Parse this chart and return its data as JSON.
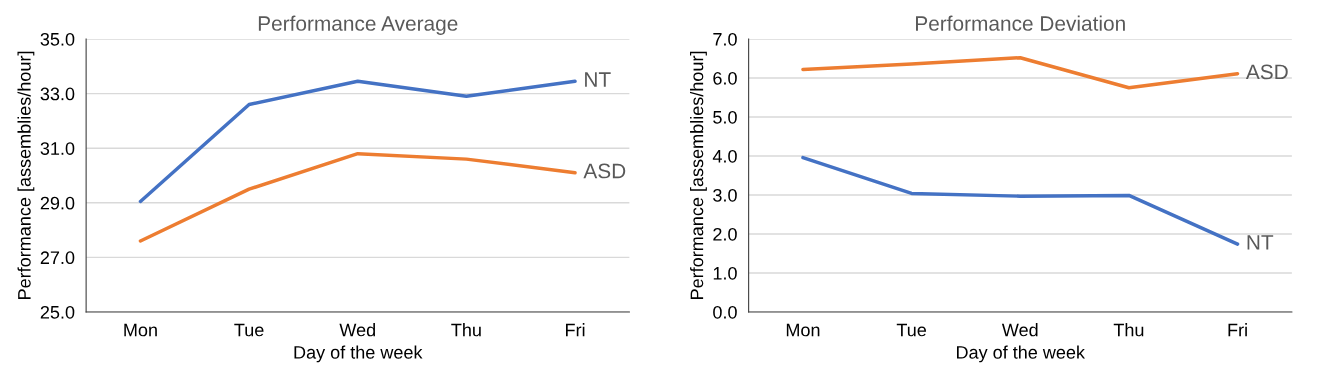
{
  "chart_data": [
    {
      "type": "line",
      "title": "Performance Average",
      "xlabel": "Day of the week",
      "ylabel": "Performance [assemblies/hour]",
      "categories": [
        "Mon",
        "Tue",
        "Wed",
        "Thu",
        "Fri"
      ],
      "series": [
        {
          "name": "NT",
          "color": "#4472c4",
          "values": [
            29.05,
            32.6,
            33.45,
            32.9,
            33.45
          ]
        },
        {
          "name": "ASD",
          "color": "#ed7d31",
          "values": [
            27.6,
            29.5,
            30.8,
            30.6,
            30.1
          ]
        }
      ],
      "ylim": [
        25,
        35
      ],
      "yticks": [
        {
          "value": 25,
          "label": "25.0"
        },
        {
          "value": 27,
          "label": "27.0"
        },
        {
          "value": 29,
          "label": "29.0"
        },
        {
          "value": 31,
          "label": "31.0"
        },
        {
          "value": 33,
          "label": "33.0"
        },
        {
          "value": 35,
          "label": "35.0"
        }
      ],
      "grid": "y",
      "legend": false,
      "marker": "none",
      "line_style": "solid"
    },
    {
      "type": "line",
      "title": "Performance Deviation",
      "xlabel": "Day of the week",
      "ylabel": "Performance [assemblies/hour]",
      "categories": [
        "Mon",
        "Tue",
        "Wed",
        "Thu",
        "Fri"
      ],
      "series": [
        {
          "name": "ASD",
          "color": "#ed7d31",
          "values": [
            6.22,
            6.36,
            6.52,
            5.75,
            6.11
          ]
        },
        {
          "name": "NT",
          "color": "#4472c4",
          "values": [
            3.96,
            3.04,
            2.97,
            2.99,
            1.74
          ]
        }
      ],
      "ylim": [
        0,
        7
      ],
      "yticks": [
        {
          "value": 0,
          "label": "0.0"
        },
        {
          "value": 1,
          "label": "1.0"
        },
        {
          "value": 2,
          "label": "2.0"
        },
        {
          "value": 3,
          "label": "3.0"
        },
        {
          "value": 4,
          "label": "4.0"
        },
        {
          "value": 5,
          "label": "5.0"
        },
        {
          "value": 6,
          "label": "6.0"
        },
        {
          "value": 7,
          "label": "7.0"
        }
      ],
      "grid": "y",
      "legend": false,
      "marker": "none",
      "line_style": "solid"
    }
  ]
}
